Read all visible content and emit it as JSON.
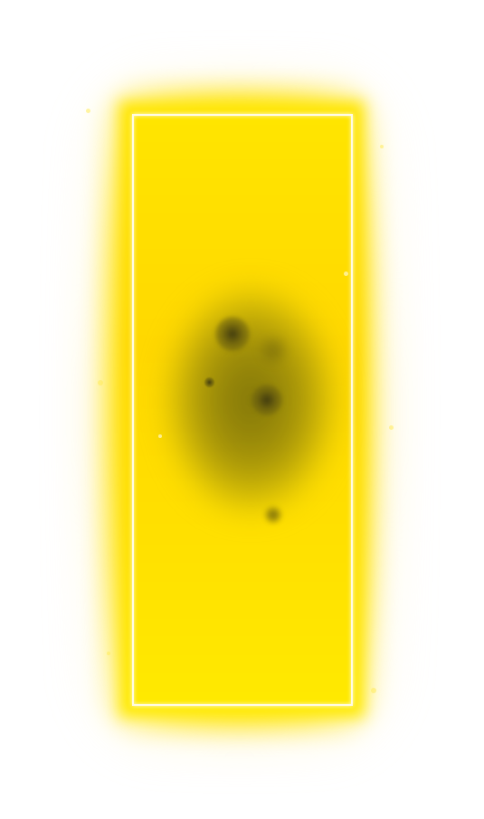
{
  "scene": {
    "subject": "glowing-yellow-panel",
    "colors": {
      "glow": "#ffe600",
      "frame": "#fffbe6",
      "shadow": "#786e0a"
    }
  }
}
